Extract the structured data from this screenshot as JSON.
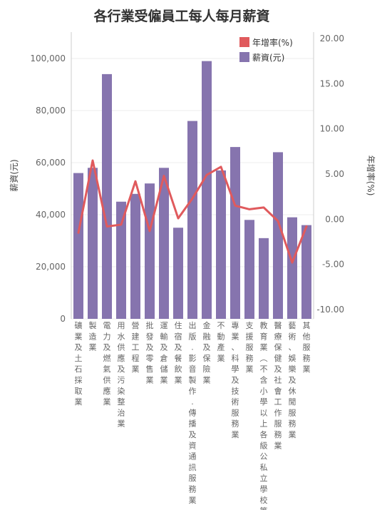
{
  "chart_data": {
    "type": "bar",
    "title": "各行業受僱員工每人每月薪資",
    "categories": [
      "礦業及土石採取業",
      "製造業",
      "電力及燃氣供應業",
      "用水供應及污染整治業",
      "營建工程業",
      "批發及零售業",
      "運輸及倉儲業",
      "住宿及餐飲業",
      "出版.影音製作.傳播及資通訊服務業",
      "金融及保險業",
      "不動產業",
      "專業、科學及技術服務業",
      "支援服務業",
      "教育業(不含小學以上各級公私立學校等)",
      "醫療保健及社會工作服務業",
      "藝術、娛樂及休閒服務業",
      "其他服務業"
    ],
    "series": [
      {
        "name": "薪資(元)",
        "type": "bar",
        "axis": "left",
        "color": "#8674ae",
        "values": [
          56000,
          58000,
          94000,
          45000,
          48000,
          52000,
          58000,
          35000,
          76000,
          99000,
          57000,
          66000,
          38000,
          31000,
          64000,
          39000,
          36000
        ]
      },
      {
        "name": "年增率(%)",
        "type": "line",
        "axis": "right",
        "color": "#e05a5d",
        "values": [
          -1.5,
          6.5,
          -0.8,
          -0.6,
          4.2,
          -1.3,
          4.8,
          0.1,
          2.3,
          4.9,
          5.8,
          1.5,
          1.1,
          1.3,
          -0.2,
          -4.8,
          -0.8
        ]
      }
    ],
    "xlabel": "",
    "ylabel": "薪資(元)",
    "y2label": "年增率(%)",
    "ylim": [
      0,
      110000
    ],
    "y2lim": [
      -10,
      20
    ],
    "yticks": [
      0,
      20000,
      40000,
      60000,
      80000,
      100000
    ],
    "yticklabels": [
      "0",
      "20,000",
      "40,000",
      "60,000",
      "80,000",
      "100,000"
    ],
    "y2ticks": [
      -10,
      -5,
      0,
      5,
      10,
      15,
      20
    ],
    "y2ticklabels": [
      "-10.00",
      "-5.00",
      "0.00",
      "5.00",
      "10.00",
      "15.00",
      "20.00"
    ],
    "grid": true,
    "legend": "top-right"
  }
}
